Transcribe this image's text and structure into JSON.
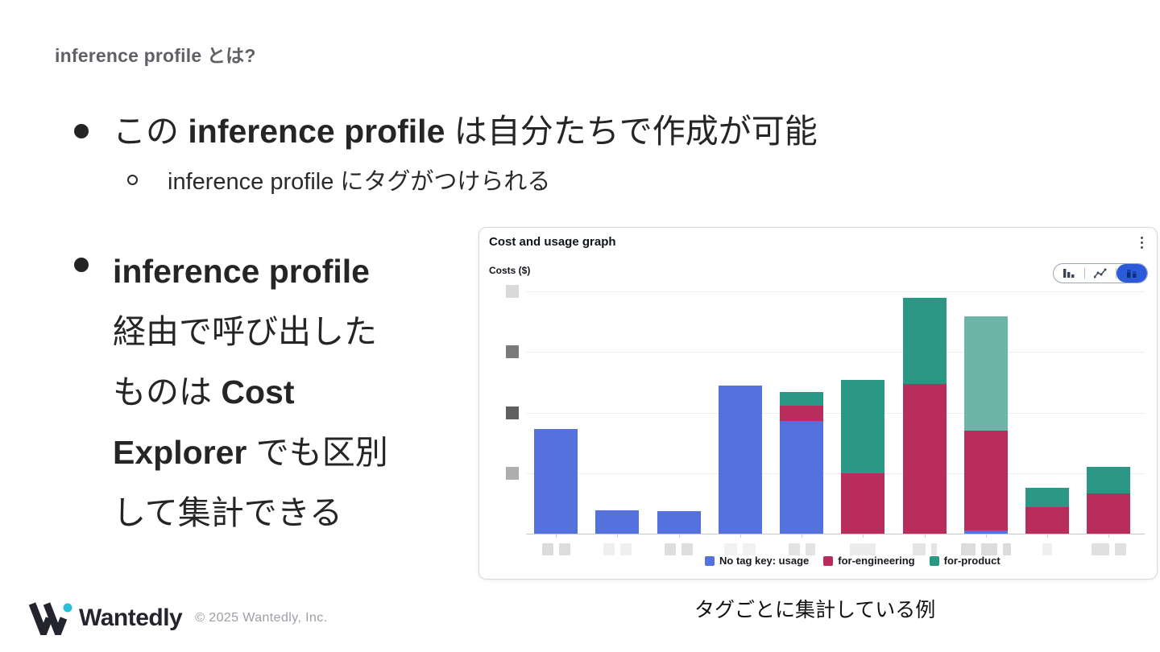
{
  "slide": {
    "header": "inference profile とは?",
    "bullet1": {
      "runs": [
        {
          "t": "この ",
          "b": false
        },
        {
          "t": "inference profile",
          "b": true
        },
        {
          "t": " は自分たちで作成が可能",
          "b": false
        }
      ]
    },
    "sub_bullet": "inference profile にタグがつけられる",
    "bullet2": {
      "lines": [
        [
          {
            "t": "inference profile",
            "b": true
          }
        ],
        [
          {
            "t": "経由で呼び出した",
            "b": false
          }
        ],
        [
          {
            "t": "ものは ",
            "b": false
          },
          {
            "t": "Cost",
            "b": true
          }
        ],
        [
          {
            "t": "Explorer",
            "b": true
          },
          {
            "t": " でも区別",
            "b": false
          }
        ],
        [
          {
            "t": "して集計できる",
            "b": false
          }
        ]
      ]
    },
    "caption": "タグごとに集計している例",
    "footer": {
      "brand": "Wantedly",
      "copyright": "© 2025 Wantedly, Inc.",
      "brand_dot_color": "#2bbfdc"
    }
  },
  "chart_card": {
    "title": "Cost and usage graph",
    "y_axis_label": "Costs ($)",
    "menu_icon": "kebab-menu",
    "view_toggle": {
      "options": [
        "bar-chart",
        "line-chart",
        "stacked-bar-chart"
      ],
      "selected": "stacked-bar-chart",
      "selected_color": "#2c5bd9"
    },
    "redactions": {
      "y_ticks": [
        {
          "unit": 4,
          "shade": "#d9d9d9"
        },
        {
          "unit": 3,
          "shade": "#7a7a7a"
        },
        {
          "unit": 2,
          "shade": "#5f5f5f"
        },
        {
          "unit": 1,
          "shade": "#aeaeae"
        }
      ],
      "x_labels": [
        {
          "boxes": [
            14,
            14
          ],
          "shade": "#dcdcdc"
        },
        {
          "boxes": [
            14,
            14
          ],
          "shade": "#efefef"
        },
        {
          "boxes": [
            14,
            14
          ],
          "shade": "#dedede"
        },
        {
          "boxes": [
            16,
            16
          ],
          "shade": "#f1f1f1"
        },
        {
          "boxes": [
            14,
            12
          ],
          "shade": "#e3e3e3"
        },
        {
          "boxes": [
            32
          ],
          "shade": "#ececec"
        },
        {
          "boxes": [
            16,
            7
          ],
          "shade": "#e4e4e4"
        },
        {
          "boxes": [
            18,
            20,
            10
          ],
          "shade": "#dcdcdc"
        },
        {
          "boxes": [
            12
          ],
          "shade": "#efefef"
        },
        {
          "boxes": [
            22,
            14
          ],
          "shade": "#e0e0e0"
        }
      ]
    }
  },
  "chart_data": {
    "type": "bar",
    "stacked": true,
    "title": "Cost and usage graph",
    "ylabel": "Costs ($)",
    "xlabel": "",
    "grid": true,
    "legend_position": "bottom",
    "x_tick_labels": "redacted",
    "y_tick_labels": "redacted",
    "y_unit_note": "values estimated in gridline units (1 unit = one horizontal gridline spacing)",
    "ylim": [
      0,
      4.2
    ],
    "categories": [
      "",
      "",
      "",
      "",
      "",
      "",
      "",
      "",
      "",
      ""
    ],
    "series": [
      {
        "name": "No tag key: usage",
        "color": "#5571de",
        "values": [
          1.73,
          0.39,
          0.37,
          2.45,
          1.86,
          0,
          0,
          0.05,
          0,
          0
        ]
      },
      {
        "name": "for-engineering",
        "color": "#b92d5d",
        "values": [
          0,
          0,
          0,
          0,
          0.25,
          1.0,
          2.47,
          1.65,
          0.44,
          0.66
        ]
      },
      {
        "name": "for-product",
        "color": "#2b9785",
        "values": [
          0,
          0,
          0,
          0,
          0.23,
          1.54,
          1.42,
          1.89,
          0.32,
          0.44
        ]
      }
    ],
    "highlighted_segment": {
      "bar_index": 7,
      "series": "for-product",
      "color": "#6db5a8"
    }
  }
}
